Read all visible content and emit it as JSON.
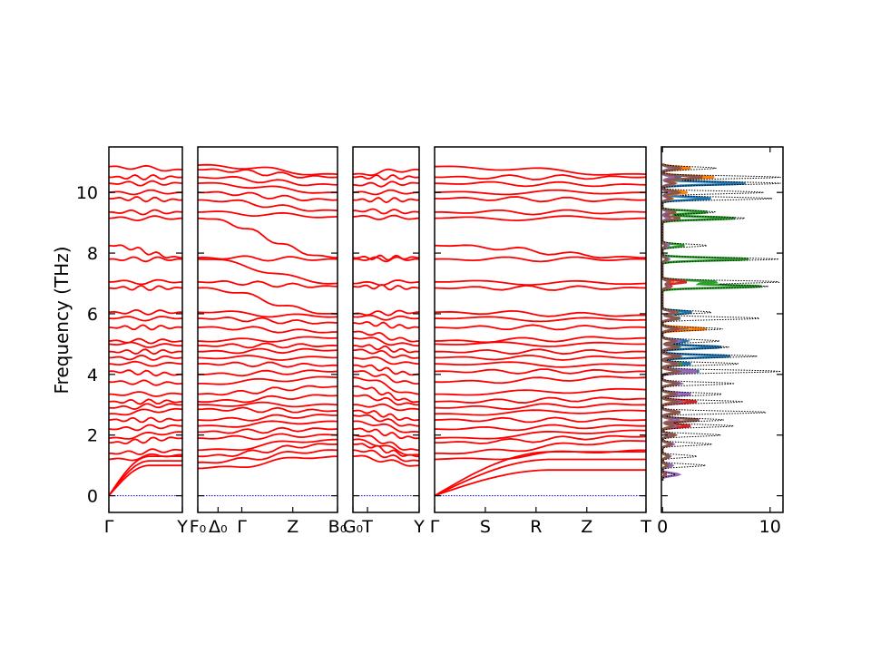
{
  "chart_data": {
    "type": "line",
    "ylabel": "Frequency (THz)",
    "ylim": [
      -0.55,
      11.5
    ],
    "yticks": [
      0,
      2,
      4,
      6,
      8,
      10
    ],
    "colors": {
      "bands": "#ff0000",
      "zero_line": "#0000cc",
      "dos_total": "#000000",
      "dos_partial": [
        "#1f77b4",
        "#ff7f0e",
        "#2ca02c",
        "#d62728",
        "#9467bd",
        "#8c564b"
      ]
    },
    "band_panels": [
      {
        "labels": [
          "Γ",
          "Y"
        ],
        "label_positions": [
          0,
          1
        ],
        "levels_start": [
          0,
          0,
          0,
          1.2,
          1.4,
          1.75,
          1.9,
          2.2,
          2.5,
          2.7,
          2.9,
          3.1,
          3.35,
          3.75,
          4.1,
          4.35,
          4.55,
          4.75,
          5.0,
          5.1,
          5.55,
          5.85,
          6.05,
          6.85,
          7.05,
          7.8,
          8.25,
          9.15,
          9.35,
          9.8,
          10.0,
          10.3,
          10.5,
          10.85
        ],
        "levels_end": [
          1.0,
          1.15,
          1.3,
          1.35,
          1.5,
          1.9,
          2.1,
          2.3,
          2.5,
          2.85,
          3.0,
          3.1,
          3.35,
          3.7,
          4.0,
          4.35,
          4.55,
          4.75,
          4.95,
          5.1,
          5.55,
          5.85,
          6.05,
          6.85,
          7.05,
          7.8,
          7.85,
          9.15,
          9.35,
          9.75,
          10.0,
          10.3,
          10.5,
          10.75
        ]
      },
      {
        "labels": [
          "F₀",
          "Δ₀",
          "Γ",
          "Z",
          "B₀"
        ],
        "label_positions": [
          0,
          0.145,
          0.315,
          0.68,
          1
        ],
        "levels_start": [
          0.9,
          1.1,
          1.3,
          1.5,
          1.9,
          2.1,
          2.3,
          2.5,
          2.85,
          3.0,
          3.1,
          3.35,
          3.7,
          4.0,
          4.35,
          4.55,
          4.75,
          4.95,
          5.1,
          5.55,
          5.85,
          6.05,
          6.85,
          7.05,
          7.8,
          7.85,
          9.15,
          9.35,
          9.75,
          10.0,
          10.3,
          10.5,
          10.75,
          10.9
        ],
        "levels_end": [
          1.3,
          1.5,
          1.7,
          1.85,
          2.0,
          2.2,
          2.45,
          2.65,
          2.8,
          3.0,
          3.3,
          3.6,
          3.9,
          4.1,
          4.3,
          4.55,
          4.8,
          4.95,
          5.2,
          5.4,
          5.7,
          5.9,
          6.0,
          6.9,
          7.0,
          7.8,
          7.85,
          9.2,
          9.4,
          9.75,
          10.0,
          10.25,
          10.5,
          10.6
        ]
      },
      {
        "labels": [
          "G₀",
          "T",
          "Y"
        ],
        "label_positions": [
          0,
          0.22,
          1
        ],
        "levels_start": [
          1.3,
          1.5,
          1.7,
          1.85,
          2.0,
          2.2,
          2.45,
          2.65,
          2.8,
          3.0,
          3.3,
          3.6,
          3.9,
          4.1,
          4.3,
          4.55,
          4.8,
          4.95,
          5.2,
          5.4,
          5.7,
          5.9,
          6.0,
          6.9,
          7.0,
          7.8,
          7.85,
          9.2,
          9.4,
          9.75,
          10.0,
          10.25,
          10.5,
          10.6
        ],
        "levels_end": [
          1.0,
          1.15,
          1.3,
          1.35,
          1.5,
          1.9,
          2.1,
          2.3,
          2.5,
          2.85,
          3.0,
          3.1,
          3.35,
          3.7,
          4.0,
          4.35,
          4.55,
          4.75,
          4.95,
          5.1,
          5.55,
          5.85,
          6.05,
          6.85,
          7.05,
          7.8,
          7.85,
          9.15,
          9.35,
          9.75,
          10.0,
          10.3,
          10.5,
          10.75
        ]
      },
      {
        "labels": [
          "Γ",
          "S",
          "R",
          "Z",
          "T"
        ],
        "label_positions": [
          0,
          0.24,
          0.48,
          0.72,
          1
        ],
        "levels_start": [
          0,
          0,
          0,
          1.2,
          1.4,
          1.75,
          1.9,
          2.2,
          2.5,
          2.7,
          2.9,
          3.1,
          3.35,
          3.75,
          4.1,
          4.35,
          4.55,
          4.75,
          5.0,
          5.1,
          5.55,
          5.85,
          6.05,
          6.85,
          7.05,
          7.8,
          8.25,
          9.15,
          9.35,
          9.8,
          10.0,
          10.3,
          10.5,
          10.85
        ],
        "levels_end": [
          0.85,
          1.2,
          1.45,
          1.5,
          1.8,
          1.95,
          2.15,
          2.3,
          2.5,
          2.8,
          3.0,
          3.2,
          3.5,
          3.9,
          4.1,
          4.3,
          4.55,
          4.75,
          5.0,
          5.2,
          5.55,
          5.8,
          5.95,
          6.85,
          7.0,
          7.8,
          7.85,
          9.15,
          9.35,
          9.75,
          10.0,
          10.25,
          10.5,
          10.6
        ]
      }
    ],
    "dos_panel": {
      "xlim": [
        -0.1,
        11.2
      ],
      "xticks": [
        0,
        10
      ],
      "peaks": [
        {
          "f": 0.7,
          "total": 1.2,
          "partial": [
            0.3,
            0.2,
            0.3,
            0.3,
            1.5,
            0.2
          ]
        },
        {
          "f": 1.0,
          "total": 4.0,
          "partial": [
            0.5,
            0.4,
            0.4,
            0.6,
            0.9,
            0.5
          ]
        },
        {
          "f": 1.3,
          "total": 3.2,
          "partial": [
            0.6,
            0.5,
            0.5,
            0.7,
            0.7,
            0.6
          ]
        },
        {
          "f": 1.7,
          "total": 4.6,
          "partial": [
            0.8,
            0.7,
            0.9,
            0.9,
            1.0,
            0.8
          ]
        },
        {
          "f": 2.0,
          "total": 5.4,
          "partial": [
            1.0,
            0.8,
            1.1,
            1.0,
            0.9,
            1.2
          ]
        },
        {
          "f": 2.3,
          "total": 6.6,
          "partial": [
            1.1,
            0.9,
            1.3,
            2.6,
            1.2,
            1.0
          ]
        },
        {
          "f": 2.5,
          "total": 5.7,
          "partial": [
            1.0,
            1.0,
            1.2,
            1.3,
            1.4,
            3.4
          ]
        },
        {
          "f": 2.75,
          "total": 9.8,
          "partial": [
            1.4,
            1.2,
            1.5,
            1.6,
            1.3,
            1.6
          ]
        },
        {
          "f": 3.1,
          "total": 7.5,
          "partial": [
            1.4,
            1.1,
            1.6,
            3.2,
            1.6,
            1.4
          ]
        },
        {
          "f": 3.35,
          "total": 5.6,
          "partial": [
            1.2,
            1.0,
            1.1,
            1.4,
            2.6,
            1.2
          ]
        },
        {
          "f": 3.7,
          "total": 6.7,
          "partial": [
            1.6,
            1.4,
            1.3,
            1.5,
            1.7,
            1.4
          ]
        },
        {
          "f": 4.1,
          "total": 11.0,
          "partial": [
            3.4,
            1.8,
            1.6,
            1.4,
            3.2,
            1.5
          ]
        },
        {
          "f": 4.35,
          "total": 7.2,
          "partial": [
            2.6,
            1.6,
            1.8,
            1.5,
            1.4,
            1.3
          ]
        },
        {
          "f": 4.6,
          "total": 8.8,
          "partial": [
            6.3,
            1.3,
            1.4,
            1.2,
            1.5,
            1.6
          ]
        },
        {
          "f": 4.9,
          "total": 6.2,
          "partial": [
            5.5,
            1.3,
            1.5,
            1.1,
            1.2,
            1.4
          ]
        },
        {
          "f": 5.1,
          "total": 5.3,
          "partial": [
            2.2,
            1.4,
            1.2,
            1.3,
            1.6,
            1.2
          ]
        },
        {
          "f": 5.5,
          "total": 5.6,
          "partial": [
            2.4,
            4.1,
            1.1,
            1.4,
            1.1,
            1.2
          ]
        },
        {
          "f": 5.85,
          "total": 9.2,
          "partial": [
            1.6,
            1.4,
            1.3,
            1.2,
            1.4,
            1.5
          ]
        },
        {
          "f": 6.05,
          "total": 4.6,
          "partial": [
            2.7,
            1.4,
            1.5,
            1.3,
            1.2,
            1.1
          ]
        },
        {
          "f": 6.9,
          "total": 9.8,
          "partial": [
            0.6,
            0.7,
            9.2,
            0.8,
            0.6,
            0.5
          ]
        },
        {
          "f": 7.05,
          "total": 11.0,
          "partial": [
            0.8,
            1.0,
            5.0,
            2.2,
            0.6,
            0.7
          ]
        },
        {
          "f": 7.8,
          "total": 10.8,
          "partial": [
            0.5,
            0.6,
            8.0,
            0.5,
            0.6,
            0.4
          ]
        },
        {
          "f": 8.25,
          "total": 4.2,
          "partial": [
            0.3,
            0.3,
            2.0,
            0.3,
            0.6,
            0.3
          ]
        },
        {
          "f": 9.15,
          "total": 7.8,
          "partial": [
            0.5,
            0.6,
            6.8,
            0.7,
            0.6,
            1.6
          ]
        },
        {
          "f": 9.35,
          "total": 5.0,
          "partial": [
            0.6,
            0.5,
            4.2,
            0.6,
            0.5,
            1.2
          ]
        },
        {
          "f": 9.8,
          "total": 10.2,
          "partial": [
            4.5,
            0.9,
            0.7,
            0.7,
            0.6,
            0.8
          ]
        },
        {
          "f": 10.0,
          "total": 9.4,
          "partial": [
            0.8,
            2.3,
            0.8,
            0.8,
            0.7,
            1.5
          ]
        },
        {
          "f": 10.3,
          "total": 11.0,
          "partial": [
            7.7,
            1.2,
            1.0,
            1.0,
            0.9,
            1.1
          ]
        },
        {
          "f": 10.5,
          "total": 11.0,
          "partial": [
            1.5,
            4.8,
            0.9,
            1.1,
            1.0,
            3.7
          ]
        },
        {
          "f": 10.8,
          "total": 5.0,
          "partial": [
            1.2,
            2.6,
            0.8,
            1.0,
            0.9,
            1.6
          ]
        }
      ]
    }
  }
}
